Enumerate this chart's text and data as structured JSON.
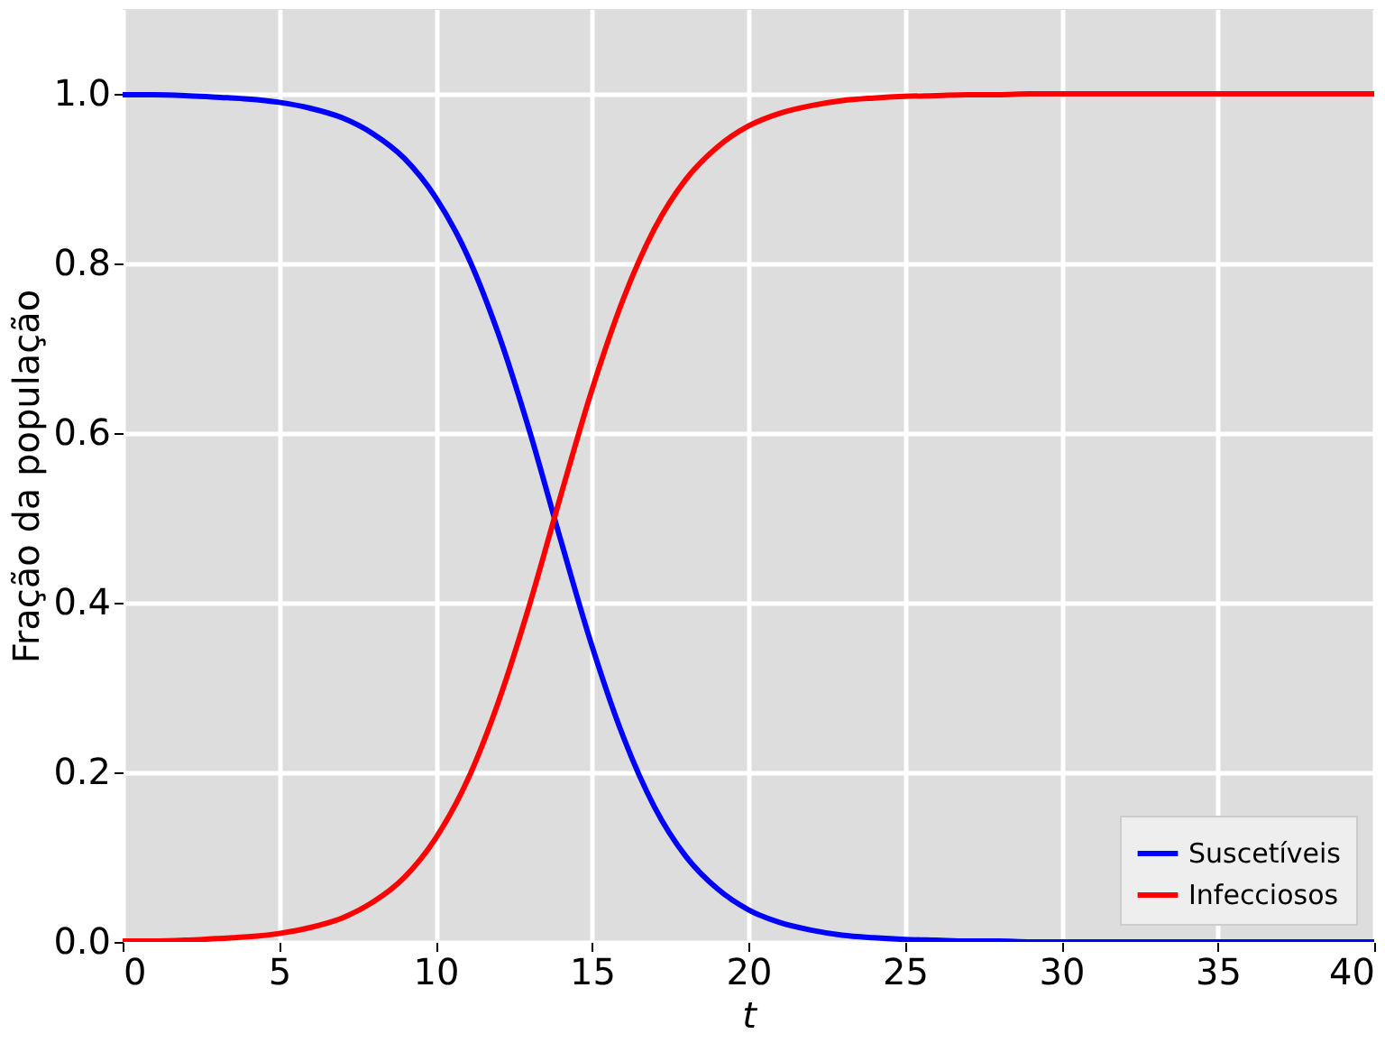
{
  "chart_data": {
    "type": "line",
    "xlabel": "t",
    "ylabel": "Fração da população",
    "x": [
      0,
      1,
      2,
      3,
      4,
      5,
      6,
      7,
      8,
      9,
      10,
      11,
      12,
      13,
      14,
      15,
      16,
      17,
      18,
      19,
      20,
      21,
      22,
      23,
      24,
      25,
      26,
      27,
      28,
      29,
      30,
      31,
      32,
      33,
      34,
      35,
      36,
      37,
      38,
      39,
      40
    ],
    "series": [
      {
        "name": "Suscetíveis",
        "color": "#0000ff",
        "values": [
          0.999,
          0.999,
          0.998,
          0.996,
          0.994,
          0.99,
          0.983,
          0.972,
          0.953,
          0.924,
          0.878,
          0.811,
          0.718,
          0.603,
          0.474,
          0.349,
          0.242,
          0.159,
          0.101,
          0.063,
          0.038,
          0.023,
          0.014,
          0.008,
          0.005,
          0.003,
          0.002,
          0.001,
          0.001,
          0,
          0,
          0,
          0,
          0,
          0,
          0,
          0,
          0,
          0,
          0,
          0
        ]
      },
      {
        "name": "Infecciosos",
        "color": "#ff0000",
        "values": [
          0.001,
          0.001,
          0.002,
          0.004,
          0.006,
          0.01,
          0.017,
          0.028,
          0.047,
          0.076,
          0.122,
          0.189,
          0.282,
          0.397,
          0.526,
          0.651,
          0.758,
          0.841,
          0.899,
          0.937,
          0.962,
          0.977,
          0.986,
          0.992,
          0.995,
          0.997,
          0.998,
          0.999,
          0.999,
          1,
          1,
          1,
          1,
          1,
          1,
          1,
          1,
          1,
          1,
          1,
          1
        ]
      }
    ],
    "xlim": [
      0,
      40
    ],
    "xticks": [
      0,
      5,
      10,
      15,
      20,
      25,
      30,
      35,
      40
    ],
    "ylim": [
      0,
      1.1
    ],
    "yticks": [
      {
        "value": 0,
        "label": "0.0"
      },
      {
        "value": 0.2,
        "label": "0.2"
      },
      {
        "value": 0.4,
        "label": "0.4"
      },
      {
        "value": 0.6,
        "label": "0.6"
      },
      {
        "value": 0.8,
        "label": "0.8"
      },
      {
        "value": 1,
        "label": "1.0"
      }
    ],
    "grid": true,
    "legend": "bottom right",
    "marker": "none",
    "line_style": "solid"
  }
}
